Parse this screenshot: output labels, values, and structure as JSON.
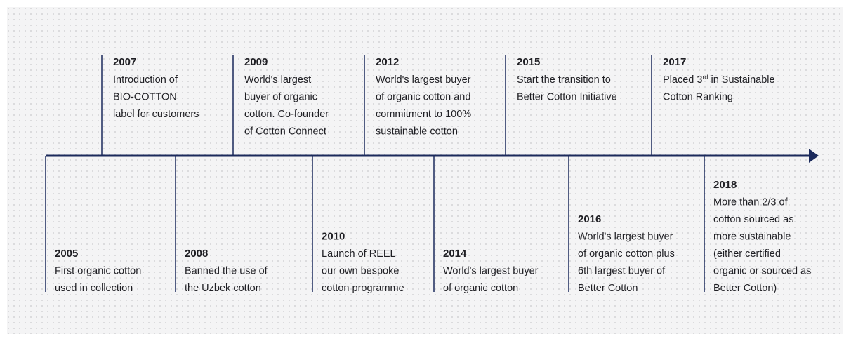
{
  "timeline": {
    "above": [
      {
        "year": "2007",
        "lines": [
          "Introduction of",
          "BIO-COTTON",
          "label for customers"
        ]
      },
      {
        "year": "2009",
        "lines": [
          "World's largest",
          "buyer of organic",
          "cotton. Co-founder",
          "of Cotton Connect"
        ]
      },
      {
        "year": "2012",
        "lines": [
          "World's largest buyer",
          "of organic cotton and",
          "commitment to 100%",
          "sustainable cotton"
        ]
      },
      {
        "year": "2015",
        "lines": [
          "Start the transition to",
          "Better Cotton Initiative"
        ]
      },
      {
        "year": "2017",
        "lines": [
          [
            "Placed 3",
            "rd",
            " in Sustainable"
          ],
          "Cotton Ranking"
        ]
      }
    ],
    "below": [
      {
        "year": "2005",
        "lines": [
          "First organic cotton",
          "used in collection"
        ]
      },
      {
        "year": "2008",
        "lines": [
          "Banned the use of",
          "the Uzbek cotton"
        ]
      },
      {
        "year": "2010",
        "lines": [
          "Launch of REEL",
          "our own bespoke",
          "cotton programme"
        ]
      },
      {
        "year": "2014",
        "lines": [
          "World's largest buyer",
          "of organic cotton"
        ]
      },
      {
        "year": "2016",
        "lines": [
          "World's largest buyer",
          "of organic cotton plus",
          "6th largest buyer of",
          "Better Cotton"
        ]
      },
      {
        "year": "2018",
        "lines": [
          "More than 2/3 of",
          "cotton sourced as",
          "more sustainable",
          "(either certified",
          "organic or sourced as",
          "Better Cotton)"
        ]
      }
    ]
  }
}
